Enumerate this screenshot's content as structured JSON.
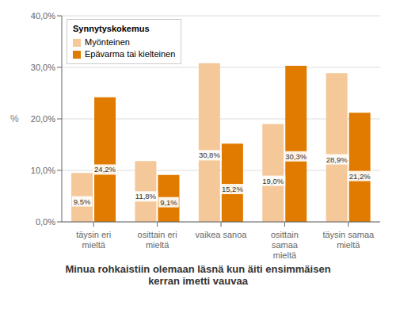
{
  "chart_data": {
    "type": "bar",
    "title": "Minua rohkaistiin olemaan läsnä kun äiti ensimmäisen\nkerran imetti vauvaa",
    "categories": [
      "täysin eri mieltä",
      "osittain eri mieltä",
      "vaikea sanoa",
      "osittain samaa\nmieltä",
      "täysin samaa\nmieltä"
    ],
    "series": [
      {
        "name": "Myönteinen",
        "color": "#f5c89a",
        "values": [
          9.5,
          11.8,
          30.8,
          19.0,
          28.9
        ],
        "value_labels": [
          "9,5%",
          "11,8%",
          "30,8%",
          "19,0%",
          "28,9%"
        ]
      },
      {
        "name": "Epävarma tai kielteinen",
        "color": "#e07b00",
        "values": [
          24.2,
          9.1,
          15.2,
          30.3,
          21.2
        ],
        "value_labels": [
          "24,2%",
          "9,1%",
          "15,2%",
          "30,3%",
          "21,2%"
        ]
      }
    ],
    "ylabel": "%",
    "ylim": [
      0,
      40
    ],
    "yticks": [
      {
        "value": 0.0,
        "label": "0,0%"
      },
      {
        "value": 10.0,
        "label": "10,0%"
      },
      {
        "value": 20.0,
        "label": "20,0%"
      },
      {
        "value": 30.0,
        "label": "30,0%"
      },
      {
        "value": 40.0,
        "label": "40,0%"
      }
    ],
    "grid": true,
    "legend": "upper left",
    "legend_title": "Synnytyskokemus",
    "data_labels": true
  }
}
